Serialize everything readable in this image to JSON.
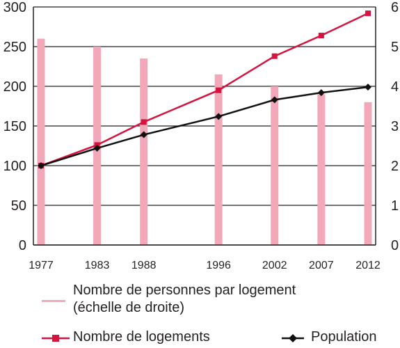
{
  "chart_data": {
    "type": "bar",
    "categories": [
      "1977",
      "1983",
      "1988",
      "1996",
      "2002",
      "2007",
      "2012"
    ],
    "x": [
      1977,
      1983,
      1988,
      1996,
      2002,
      2007,
      2012
    ],
    "left_axis": {
      "ylim": [
        0,
        300
      ],
      "ticks": [
        "0",
        "50",
        "100",
        "150",
        "200",
        "250",
        "300"
      ]
    },
    "right_axis": {
      "ylim": [
        0,
        6
      ],
      "ticks": [
        "0",
        "1",
        "2",
        "3",
        "4",
        "5",
        "6"
      ]
    },
    "grid": true,
    "legend_position": "bottom",
    "series": [
      {
        "name": "Nombre de personnes par logement",
        "name_line2": "(échelle de droite)",
        "type": "bar",
        "axis": "right",
        "color": "#f2a8b8",
        "values": [
          5.2,
          5.0,
          4.7,
          4.3,
          4.0,
          3.8,
          3.6
        ]
      },
      {
        "name": "Nombre de logements",
        "type": "line",
        "axis": "left",
        "marker": "square",
        "color": "#d4143f",
        "values": [
          100,
          126,
          155,
          195,
          238,
          264,
          292
        ]
      },
      {
        "name": "Population",
        "type": "line",
        "axis": "left",
        "marker": "diamond",
        "color": "#111111",
        "values": [
          100,
          122,
          139,
          162,
          183,
          192,
          199
        ]
      }
    ]
  }
}
